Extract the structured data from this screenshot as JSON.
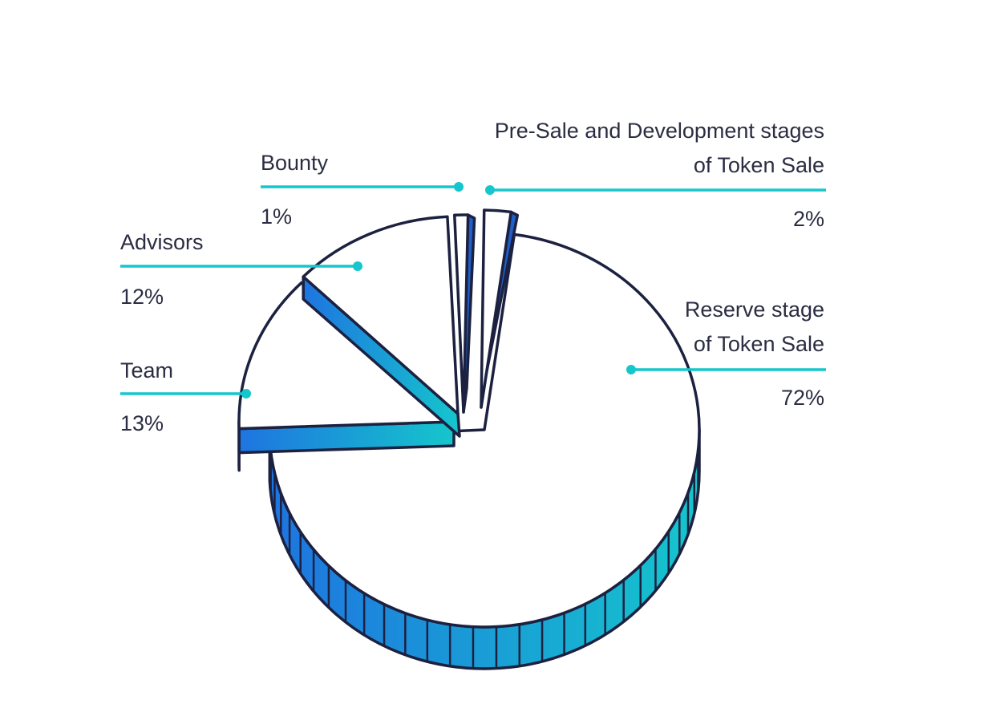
{
  "chart_data": {
    "type": "pie",
    "title": "",
    "slices": [
      {
        "name": "Reserve stage of Token Sale",
        "label_lines": [
          "Reserve stage",
          "of Token Sale"
        ],
        "value": 72,
        "value_label": "72%",
        "label_side": "right"
      },
      {
        "name": "Team",
        "label_lines": [
          "Team"
        ],
        "value": 13,
        "value_label": "13%",
        "label_side": "left"
      },
      {
        "name": "Advisors",
        "label_lines": [
          "Advisors"
        ],
        "value": 12,
        "value_label": "12%",
        "label_side": "left"
      },
      {
        "name": "Bounty",
        "label_lines": [
          "Bounty"
        ],
        "value": 1,
        "value_label": "1%",
        "label_side": "left"
      },
      {
        "name": "Pre-Sale and Development stages of Token Sale",
        "label_lines": [
          "Pre-Sale and Development stages",
          "of Token Sale"
        ],
        "value": 2,
        "value_label": "2%",
        "label_side": "right"
      }
    ],
    "style": "3d-exploded",
    "colors": {
      "outline": "#1c2140",
      "leader": "#15c6cc",
      "side_gradient_start": "#1e74e0",
      "side_gradient_end": "#15c6cc",
      "top_fill": "#ffffff"
    }
  }
}
